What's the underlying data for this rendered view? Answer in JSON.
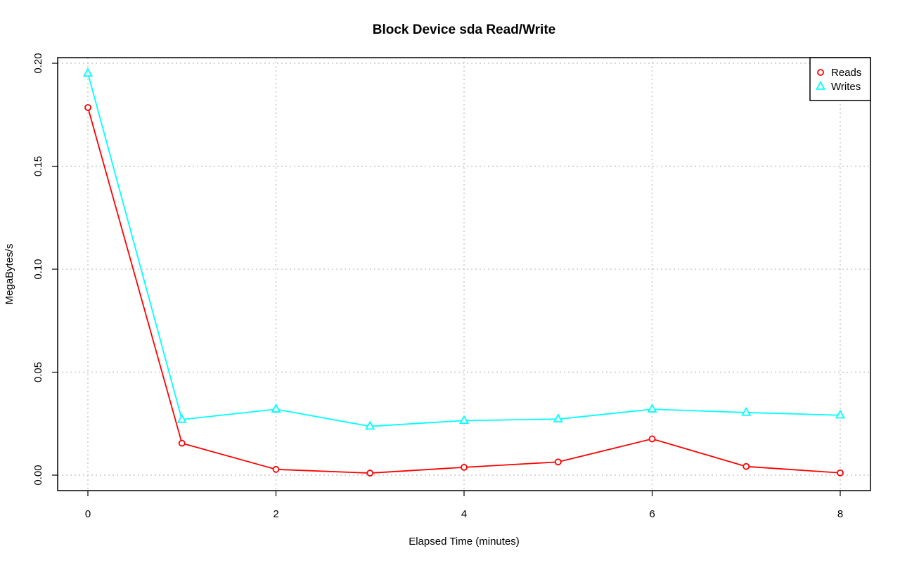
{
  "chart_data": {
    "type": "line",
    "title": "Block Device sda Read/Write",
    "xlabel": "Elapsed Time (minutes)",
    "ylabel": "MegaBytes/s",
    "xlim": [
      0,
      8
    ],
    "ylim": [
      0,
      0.2
    ],
    "x_ticks": [
      "0",
      "2",
      "4",
      "6",
      "8"
    ],
    "y_ticks": [
      "0.00",
      "0.05",
      "0.10",
      "0.15",
      "0.20"
    ],
    "grid": true,
    "legend_position": "top-right",
    "x": [
      0,
      1,
      2,
      3,
      4,
      5,
      6,
      7,
      8
    ],
    "series": [
      {
        "name": "Reads",
        "color": "#ff0000",
        "marker": "circle",
        "values": [
          0.1785,
          0.0155,
          0.0028,
          0.001,
          0.0038,
          0.0064,
          0.0176,
          0.0042,
          0.0011
        ]
      },
      {
        "name": "Writes",
        "color": "#00ffff",
        "marker": "triangle",
        "values": [
          0.1951,
          0.027,
          0.032,
          0.0237,
          0.0265,
          0.0272,
          0.032,
          0.0304,
          0.0291
        ]
      }
    ]
  }
}
